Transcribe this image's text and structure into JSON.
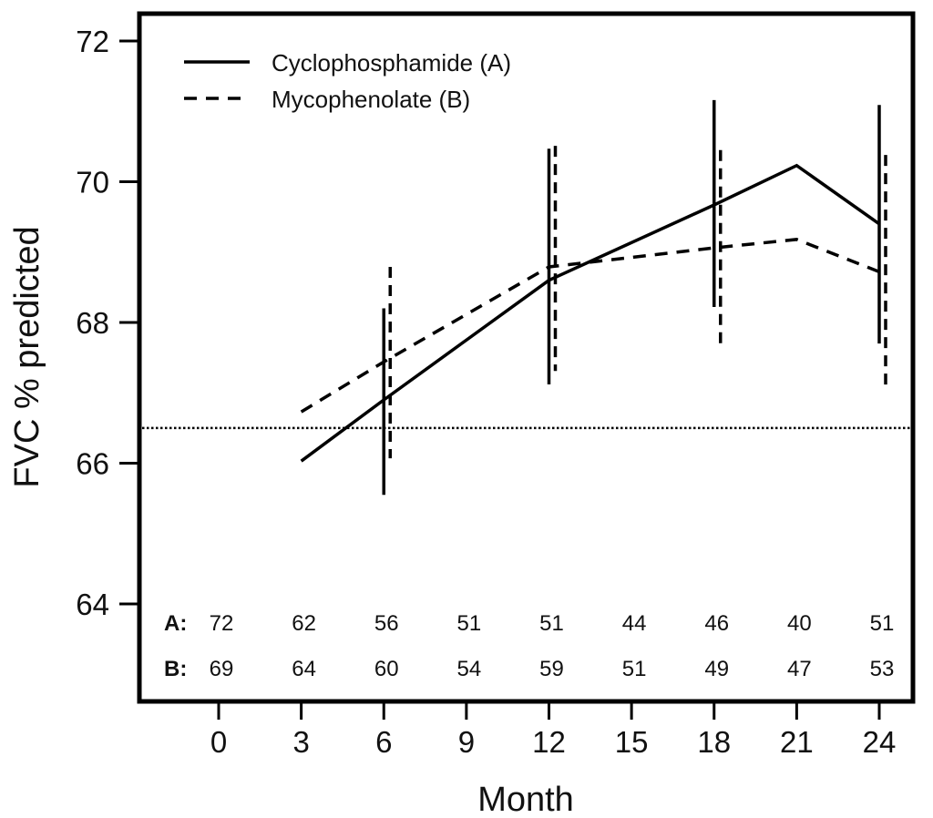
{
  "chart_data": {
    "type": "line",
    "title": "",
    "xlabel": "Month",
    "ylabel": "FVC % predicted",
    "xlim": [
      -2.8,
      25.3
    ],
    "ylim": [
      62.9,
      72.4
    ],
    "x_ticks": [
      0,
      3,
      6,
      9,
      12,
      15,
      18,
      21,
      24
    ],
    "y_ticks": [
      64,
      66,
      68,
      70,
      72
    ],
    "grid": false,
    "legend": {
      "placement": "top-left",
      "entries": [
        {
          "label": "Cyclophosphamide (A)",
          "style": "solid"
        },
        {
          "label": "Mycophenolate (B)",
          "style": "dashed"
        }
      ]
    },
    "reference_line": {
      "y": 66.5,
      "style": "dotted"
    },
    "series": [
      {
        "name": "Cyclophosphamide (A)",
        "style": "solid",
        "x": [
          3,
          6,
          12,
          18,
          21,
          24
        ],
        "y": [
          66.03,
          66.9,
          68.6,
          69.67,
          70.23,
          69.4
        ],
        "error_bars": [
          {
            "x": 6,
            "low": 65.55,
            "high": 68.2
          },
          {
            "x": 12,
            "low": 67.12,
            "high": 70.47
          },
          {
            "x": 18,
            "low": 68.22,
            "high": 71.16
          },
          {
            "x": 24,
            "low": 67.7,
            "high": 71.09
          }
        ]
      },
      {
        "name": "Mycophenolate (B)",
        "style": "dashed",
        "x": [
          3,
          6,
          12,
          18,
          21,
          24
        ],
        "y": [
          66.73,
          67.44,
          68.79,
          69.06,
          69.18,
          68.72
        ],
        "error_bars": [
          {
            "x": 6,
            "low": 66.07,
            "high": 68.79
          },
          {
            "x": 12,
            "low": 67.31,
            "high": 70.51
          },
          {
            "x": 18,
            "low": 67.62,
            "high": 70.45
          },
          {
            "x": 24,
            "low": 67.02,
            "high": 70.38
          }
        ]
      }
    ],
    "at_risk_table": {
      "months": [
        0,
        3,
        6,
        9,
        12,
        15,
        18,
        21,
        24
      ],
      "rows": [
        {
          "label": "A:",
          "values": [
            "72",
            "62",
            "56",
            "51",
            "51",
            "44",
            "46",
            "40",
            "51"
          ]
        },
        {
          "label": "B:",
          "values": [
            "69",
            "64",
            "60",
            "54",
            "59",
            "51",
            "49",
            "47",
            "53"
          ]
        }
      ]
    }
  }
}
